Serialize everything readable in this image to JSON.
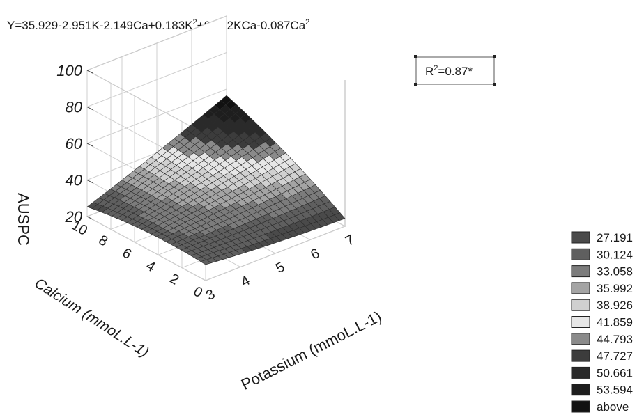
{
  "chart_data": {
    "type": "surface3d",
    "equation": {
      "base": "Y=35.929-2.951K-2.149Ca+0.183K",
      "sup1": "2",
      "mid": "+0.892KCa-0.087Ca",
      "sup2": "2"
    },
    "r2": {
      "base": "R",
      "sup": "2",
      "rest": "=0.87*"
    },
    "coefficients": {
      "b0": 35.929,
      "bK": -2.951,
      "bCa": -2.149,
      "bKK": 0.183,
      "bKCa": 0.892,
      "bCaCa": -0.087
    },
    "zlabel": "AUSPC",
    "xlabel": "Potassium (mmoL.L-1)",
    "ylabel": "Calcium (mmoL.L-1)",
    "x_range": [
      3,
      7
    ],
    "y_range": [
      0,
      10
    ],
    "z_range": [
      20,
      100
    ],
    "x_ticks": [
      "3",
      "4",
      "5",
      "6",
      "7"
    ],
    "y_ticks": [
      "0",
      "2",
      "4",
      "6",
      "8",
      "10"
    ],
    "z_ticks": [
      "20",
      "40",
      "60",
      "80",
      "100"
    ],
    "legend": {
      "placement": "right",
      "items": [
        {
          "label": "27.191",
          "color": "#4a4a4a"
        },
        {
          "label": "30.124",
          "color": "#5f5f5f"
        },
        {
          "label": "33.058",
          "color": "#7c7c7c"
        },
        {
          "label": "35.992",
          "color": "#a4a4a4"
        },
        {
          "label": "38.926",
          "color": "#d0d0d0"
        },
        {
          "label": "41.859",
          "color": "#e6e6e6"
        },
        {
          "label": "44.793",
          "color": "#8a8a8a"
        },
        {
          "label": "47.727",
          "color": "#3c3c3c"
        },
        {
          "label": "50.661",
          "color": "#2a2a2a"
        },
        {
          "label": "53.594",
          "color": "#1e1e1e"
        },
        {
          "label": "above",
          "color": "#111111"
        }
      ]
    },
    "grid": true
  }
}
